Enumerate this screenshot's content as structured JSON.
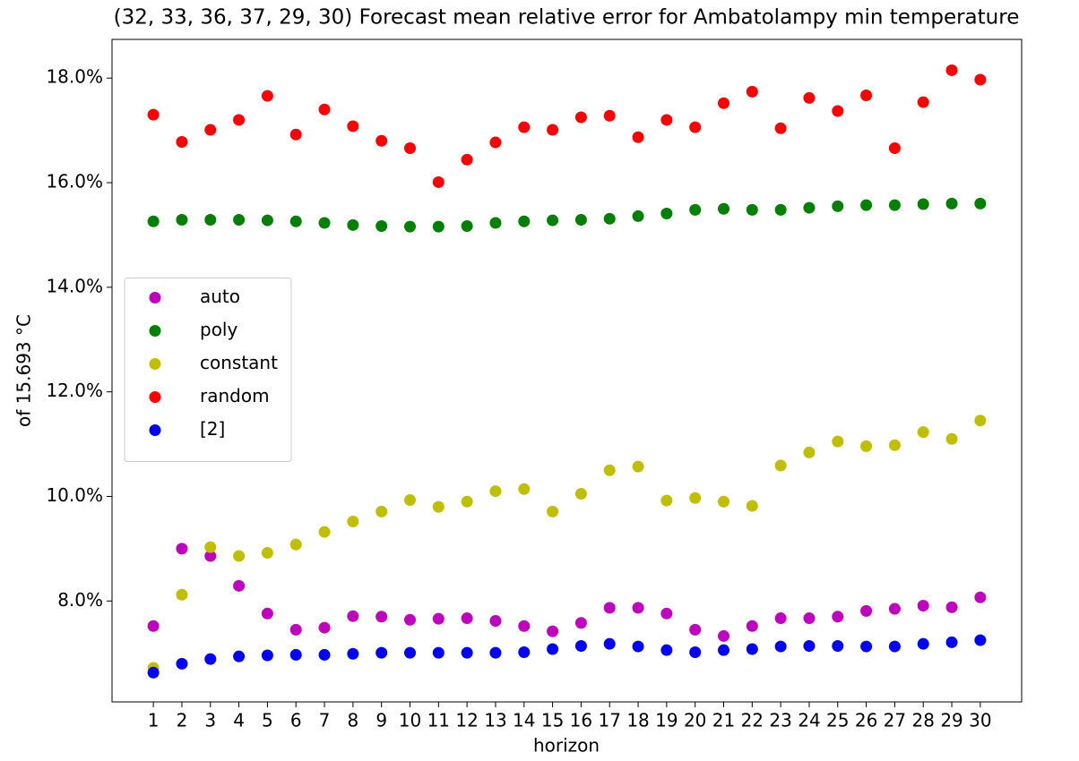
{
  "chart_data": {
    "type": "scatter",
    "title": "(32, 33, 36, 37, 29, 30) Forecast mean relative error for Ambatolampy min temperature",
    "x_label": "horizon",
    "y_label": "of 15.693 °C",
    "x": [
      1,
      2,
      3,
      4,
      5,
      6,
      7,
      8,
      9,
      10,
      11,
      12,
      13,
      14,
      15,
      16,
      17,
      18,
      19,
      20,
      21,
      22,
      23,
      24,
      25,
      26,
      27,
      28,
      29,
      30
    ],
    "xlim": [
      -0.45,
      31.45
    ],
    "xticks": [
      1,
      2,
      3,
      4,
      5,
      6,
      7,
      8,
      9,
      10,
      11,
      12,
      13,
      14,
      15,
      16,
      17,
      18,
      19,
      20,
      21,
      22,
      23,
      24,
      25,
      26,
      27,
      28,
      29,
      30
    ],
    "ylim": [
      6.07,
      18.74
    ],
    "yticks": [
      {
        "value": 8,
        "label": "8.0%"
      },
      {
        "value": 10,
        "label": "10.0%"
      },
      {
        "value": 12,
        "label": "12.0%"
      },
      {
        "value": 14,
        "label": "14.0%"
      },
      {
        "value": 16,
        "label": "16.0%"
      },
      {
        "value": 18,
        "label": "18.0%"
      }
    ],
    "legend": "center left",
    "series": [
      {
        "name": "auto",
        "color": "#bf00bf",
        "values": [
          7.52,
          9.0,
          8.86,
          8.29,
          7.76,
          7.45,
          7.49,
          7.71,
          7.7,
          7.64,
          7.66,
          7.67,
          7.62,
          7.52,
          7.42,
          7.58,
          7.87,
          7.87,
          7.76,
          7.45,
          7.33,
          7.52,
          7.67,
          7.67,
          7.7,
          7.81,
          7.85,
          7.91,
          7.88,
          8.07
        ]
      },
      {
        "name": "poly",
        "color": "#008000",
        "values": [
          15.26,
          15.29,
          15.29,
          15.29,
          15.28,
          15.26,
          15.23,
          15.19,
          15.17,
          15.16,
          15.16,
          15.17,
          15.23,
          15.26,
          15.28,
          15.29,
          15.31,
          15.36,
          15.41,
          15.48,
          15.5,
          15.48,
          15.48,
          15.52,
          15.55,
          15.57,
          15.57,
          15.59,
          15.6,
          15.6
        ]
      },
      {
        "name": "constant",
        "color": "#bfbf00",
        "values": [
          6.72,
          8.12,
          9.03,
          8.86,
          8.92,
          9.08,
          9.32,
          9.52,
          9.71,
          9.93,
          9.8,
          9.9,
          10.1,
          10.14,
          9.71,
          10.05,
          10.5,
          10.57,
          9.92,
          9.97,
          9.9,
          9.82,
          10.59,
          10.84,
          11.05,
          10.96,
          10.98,
          11.23,
          11.1,
          11.45
        ]
      },
      {
        "name": "random",
        "color": "#ff0000",
        "values": [
          17.3,
          16.78,
          17.01,
          17.2,
          17.66,
          16.92,
          17.4,
          17.08,
          16.8,
          16.66,
          16.01,
          16.44,
          16.77,
          17.06,
          17.01,
          17.25,
          17.28,
          16.87,
          17.2,
          17.06,
          17.52,
          17.74,
          17.04,
          17.62,
          17.37,
          17.67,
          16.66,
          17.54,
          18.15,
          17.97
        ]
      },
      {
        "name": "[2]",
        "color": "#0000ff",
        "values": [
          6.63,
          6.8,
          6.89,
          6.94,
          6.96,
          6.97,
          6.97,
          6.99,
          7.01,
          7.01,
          7.01,
          7.01,
          7.01,
          7.02,
          7.08,
          7.14,
          7.18,
          7.13,
          7.06,
          7.02,
          7.06,
          7.08,
          7.13,
          7.14,
          7.14,
          7.13,
          7.13,
          7.18,
          7.21,
          7.25
        ]
      }
    ]
  }
}
